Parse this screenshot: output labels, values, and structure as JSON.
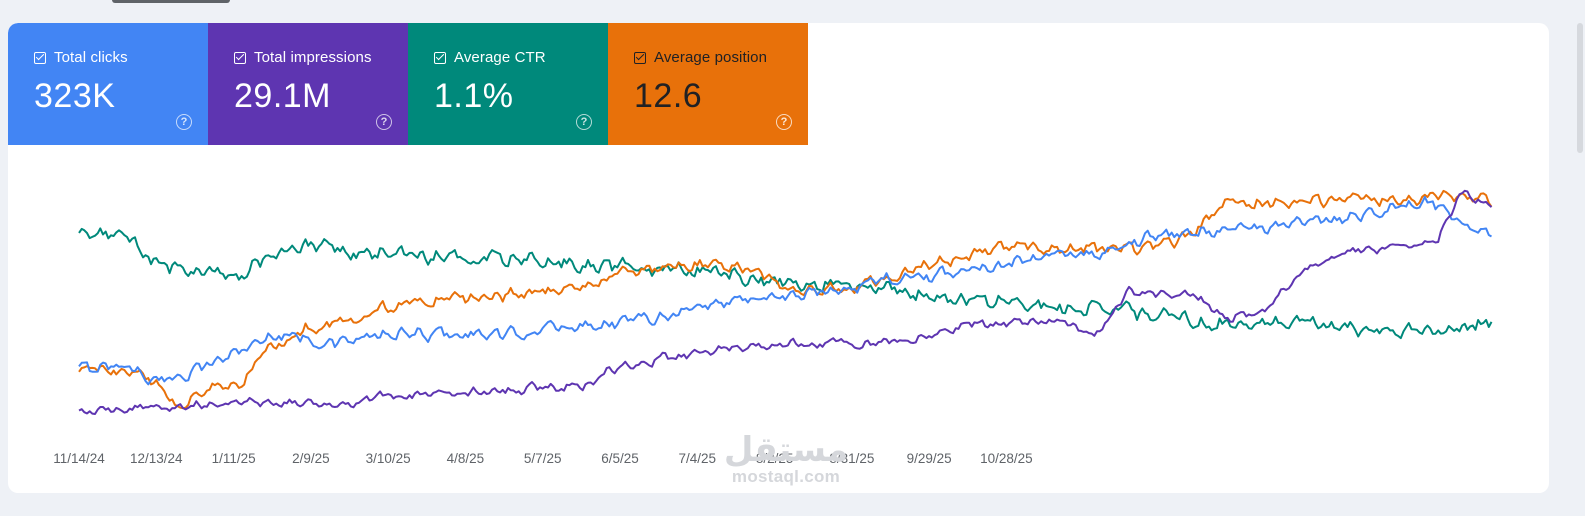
{
  "cards": [
    {
      "id": "clicks",
      "label": "Total clicks",
      "value": "323K",
      "color": "#4285f4",
      "checked": true
    },
    {
      "id": "impressions",
      "label": "Total impressions",
      "value": "29.1M",
      "color": "#5e35b1",
      "checked": true
    },
    {
      "id": "ctr",
      "label": "Average CTR",
      "value": "1.1%",
      "color": "#00897b",
      "checked": true
    },
    {
      "id": "position",
      "label": "Average position",
      "value": "12.6",
      "color": "#e8710a",
      "checked": true
    }
  ],
  "help_glyph": "?",
  "watermark": {
    "arabic": "مستقل",
    "latin": "mostaql.com"
  },
  "chart_data": {
    "type": "line",
    "x_start": "11/14/24",
    "x_end": "11/13/25",
    "x_tick_labels": [
      "11/14/24",
      "12/13/24",
      "1/11/25",
      "2/9/25",
      "3/10/25",
      "4/8/25",
      "5/7/25",
      "6/5/25",
      "7/4/25",
      "8/2/25",
      "8/31/25",
      "9/29/25",
      "10/28/25"
    ],
    "y_axis_shown": false,
    "grid": false,
    "legend": "none (metric cards act as legend)",
    "note_units": "values are relative, normalized per metric (no printed y-axis)",
    "series": [
      {
        "name": "Total clicks",
        "color": "#4285f4",
        "keypoints": [
          [
            0,
            0.21
          ],
          [
            18,
            0.23
          ],
          [
            30,
            0.14
          ],
          [
            50,
            0.24
          ],
          [
            75,
            0.38
          ],
          [
            95,
            0.33
          ],
          [
            115,
            0.37
          ],
          [
            140,
            0.38
          ],
          [
            160,
            0.37
          ],
          [
            180,
            0.41
          ],
          [
            200,
            0.43
          ],
          [
            225,
            0.48
          ],
          [
            245,
            0.54
          ],
          [
            270,
            0.56
          ],
          [
            290,
            0.6
          ],
          [
            300,
            0.64
          ],
          [
            318,
            0.64
          ],
          [
            340,
            0.7
          ],
          [
            360,
            0.73
          ],
          [
            370,
            0.76
          ],
          [
            386,
            0.76
          ],
          [
            400,
            0.84
          ],
          [
            419,
            0.86
          ],
          [
            430,
            0.88
          ],
          [
            445,
            0.88
          ],
          [
            460,
            0.9
          ],
          [
            470,
            0.92
          ],
          [
            480,
            0.95
          ],
          [
            495,
            0.98
          ],
          [
            500,
            0.99
          ],
          [
            508,
            1.0
          ],
          [
            514,
            0.94
          ],
          [
            520,
            0.88
          ],
          [
            530,
            0.84
          ]
        ],
        "noise": 0.02
      },
      {
        "name": "Total impressions",
        "color": "#5e35b1",
        "keypoints": [
          [
            0,
            0.0
          ],
          [
            30,
            0.03
          ],
          [
            60,
            0.05
          ],
          [
            100,
            0.05
          ],
          [
            115,
            0.08
          ],
          [
            140,
            0.09
          ],
          [
            170,
            0.12
          ],
          [
            190,
            0.12
          ],
          [
            200,
            0.21
          ],
          [
            218,
            0.26
          ],
          [
            245,
            0.31
          ],
          [
            270,
            0.33
          ],
          [
            290,
            0.34
          ],
          [
            300,
            0.33
          ],
          [
            318,
            0.36
          ],
          [
            335,
            0.42
          ],
          [
            352,
            0.43
          ],
          [
            370,
            0.43
          ],
          [
            380,
            0.35
          ],
          [
            394,
            0.58
          ],
          [
            407,
            0.57
          ],
          [
            419,
            0.56
          ],
          [
            430,
            0.45
          ],
          [
            445,
            0.49
          ],
          [
            460,
            0.7
          ],
          [
            470,
            0.74
          ],
          [
            482,
            0.78
          ],
          [
            500,
            0.79
          ],
          [
            510,
            0.84
          ],
          [
            518,
            1.04
          ],
          [
            524,
            1.02
          ],
          [
            530,
            1.0
          ]
        ],
        "noise": 0.015
      },
      {
        "name": "Average CTR",
        "color": "#00897b",
        "keypoints": [
          [
            0,
            0.86
          ],
          [
            20,
            0.82
          ],
          [
            30,
            0.69
          ],
          [
            60,
            0.66
          ],
          [
            70,
            0.73
          ],
          [
            80,
            0.8
          ],
          [
            110,
            0.76
          ],
          [
            170,
            0.72
          ],
          [
            225,
            0.68
          ],
          [
            250,
            0.65
          ],
          [
            280,
            0.62
          ],
          [
            300,
            0.6
          ],
          [
            318,
            0.57
          ],
          [
            340,
            0.54
          ],
          [
            380,
            0.5
          ],
          [
            400,
            0.47
          ],
          [
            420,
            0.43
          ],
          [
            445,
            0.43
          ],
          [
            465,
            0.42
          ],
          [
            480,
            0.4
          ],
          [
            500,
            0.4
          ],
          [
            512,
            0.39
          ],
          [
            530,
            0.44
          ]
        ],
        "noise": 0.025
      },
      {
        "name": "Average position",
        "color": "#e8710a",
        "keypoints": [
          [
            0,
            0.2
          ],
          [
            24,
            0.19
          ],
          [
            30,
            0.12
          ],
          [
            38,
            0.02
          ],
          [
            45,
            0.1
          ],
          [
            60,
            0.14
          ],
          [
            70,
            0.29
          ],
          [
            85,
            0.4
          ],
          [
            100,
            0.44
          ],
          [
            120,
            0.52
          ],
          [
            140,
            0.54
          ],
          [
            160,
            0.56
          ],
          [
            180,
            0.58
          ],
          [
            210,
            0.68
          ],
          [
            230,
            0.71
          ],
          [
            245,
            0.71
          ],
          [
            260,
            0.64
          ],
          [
            270,
            0.57
          ],
          [
            290,
            0.6
          ],
          [
            300,
            0.64
          ],
          [
            318,
            0.7
          ],
          [
            340,
            0.78
          ],
          [
            350,
            0.79
          ],
          [
            370,
            0.78
          ],
          [
            390,
            0.78
          ],
          [
            410,
            0.8
          ],
          [
            419,
            0.86
          ],
          [
            430,
            1.0
          ],
          [
            460,
            1.0
          ],
          [
            480,
            1.02
          ],
          [
            500,
            1.02
          ],
          [
            520,
            1.04
          ],
          [
            530,
            1.02
          ]
        ],
        "noise": 0.02
      }
    ]
  }
}
